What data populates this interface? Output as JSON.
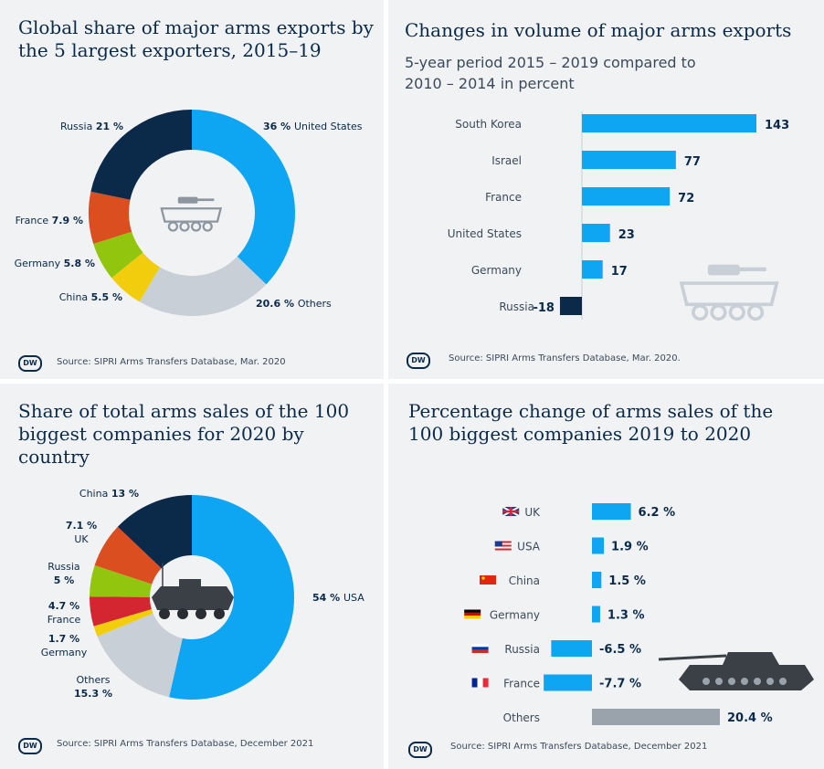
{
  "panels": {
    "p1": {
      "title": "Global share of major arms exports by the 5 largest exporters, 2015–19",
      "source": "Source: SIPRI Arms Transfers Database, Mar. 2020"
    },
    "p2": {
      "title": "Changes in volume of major arms exports",
      "subtitle": "5-year period 2015 – 2019 compared to 2010 – 2014 in percent",
      "source": "Source: SIPRI Arms Transfers Database, Mar. 2020."
    },
    "p3": {
      "title": "Share of total arms sales of the 100 biggest companies for 2020 by country",
      "source": "Source: SIPRI Arms Transfers Database, December 2021"
    },
    "p4": {
      "title": "Percentage change of arms sales of the 100 biggest companies 2019 to 2020",
      "source": "Source: SIPRI Arms Transfers Database, December 2021"
    }
  },
  "logo": "DW",
  "chart_data": [
    {
      "type": "pie",
      "title": "Global share of major arms exports by the 5 largest exporters, 2015–19",
      "categories": [
        "United States",
        "Others",
        "China",
        "Germany",
        "France",
        "Russia"
      ],
      "values": [
        36,
        20.6,
        5.5,
        5.8,
        7.9,
        21
      ],
      "labels": [
        "36 %",
        "20.6 %",
        "5.5 %",
        "5.8 %",
        "7.9 %",
        "21 %"
      ],
      "colors": [
        "#0ea5f2",
        "#c8cfd6",
        "#f2cd0e",
        "#92c50e",
        "#db4e1f",
        "#0b2a4a"
      ]
    },
    {
      "type": "bar",
      "title": "Changes in volume of major arms exports",
      "subtitle": "5-year period 2015 – 2019 compared to 2010 – 2014 in percent",
      "categories": [
        "South Korea",
        "Israel",
        "France",
        "United States",
        "Germany",
        "Russia"
      ],
      "values": [
        143,
        77,
        72,
        23,
        17,
        -18
      ],
      "colors": {
        "positive": "#0ea5f2",
        "negative": "#0b2a4a"
      }
    },
    {
      "type": "pie",
      "title": "Share of total arms sales of the 100 biggest companies for 2020 by country",
      "categories": [
        "USA",
        "Others",
        "Germany",
        "France",
        "Russia",
        "UK",
        "China"
      ],
      "values": [
        54,
        15.3,
        1.7,
        4.7,
        5,
        7.1,
        13
      ],
      "labels": [
        "54 %",
        "15.3 %",
        "1.7 %",
        "4.7 %",
        "5 %",
        "7.1 %",
        "13 %"
      ],
      "colors": [
        "#0ea5f2",
        "#c8cfd6",
        "#f2cd0e",
        "#d42630",
        "#92c50e",
        "#db4e1f",
        "#0b2a4a"
      ]
    },
    {
      "type": "bar",
      "title": "Percentage change of arms sales of the 100 biggest companies 2019 to 2020",
      "categories": [
        "UK",
        "USA",
        "China",
        "Germany",
        "Russia",
        "France",
        "Others"
      ],
      "values": [
        6.2,
        1.9,
        1.5,
        1.3,
        -6.5,
        -7.7,
        20.4
      ],
      "labels": [
        "6.2 %",
        "1.9 %",
        "1.5 %",
        "1.3 %",
        "-6.5 %",
        "-7.7 %",
        "20.4 %"
      ],
      "colors": {
        "bar": "#0ea5f2",
        "others": "#9aa3ab"
      }
    }
  ]
}
